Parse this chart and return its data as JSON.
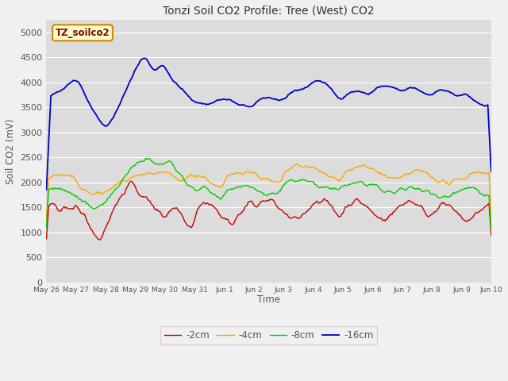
{
  "title": "Tonzi Soil CO2 Profile: Tree (West) CO2",
  "ylabel": "Soil CO2 (mV)",
  "xlabel": "Time",
  "legend_label": "TZ_soilco2",
  "ylim": [
    0,
    5250
  ],
  "yticks": [
    0,
    500,
    1000,
    1500,
    2000,
    2500,
    3000,
    3500,
    4000,
    4500,
    5000
  ],
  "series_labels": [
    "-2cm",
    "-4cm",
    "-8cm",
    "-16cm"
  ],
  "series_colors": [
    "#cc0000",
    "#ffa500",
    "#00cc00",
    "#0000cc"
  ],
  "x_tick_labels": [
    "May 26",
    "May 27",
    "May 28",
    "May 29",
    "May 30",
    "May 31",
    "Jun 1",
    "Jun 2",
    "Jun 3",
    "Jun 4",
    "Jun 5",
    "Jun 6",
    "Jun 7",
    "Jun 8",
    "Jun 9",
    "Jun 10"
  ],
  "plot_bg": "#dcdcdc",
  "fig_bg": "#f0f0f0",
  "title_color": "#333333",
  "legend_box_facecolor": "#ffffcc",
  "legend_box_edgecolor": "#cc8800",
  "legend_text_color": "#8B0000",
  "grid_color": "#ffffff",
  "tick_label_color": "#555555"
}
